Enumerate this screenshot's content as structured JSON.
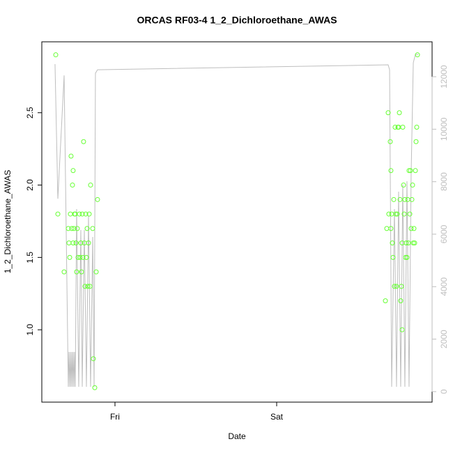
{
  "chart_data": {
    "type": "scatter",
    "title": "ORCAS RF03-4 1_2_Dichloroethane_AWAS",
    "xlabel": "Date",
    "ylabel": "1_2_Dichloroethane_AWAS",
    "xlim": [
      -10.86,
      47.07
    ],
    "xticks": [
      {
        "value": 0,
        "label": "Fri"
      },
      {
        "value": 24,
        "label": "Sat"
      }
    ],
    "ylim": [
      0.5,
      2.99
    ],
    "yticks": [
      {
        "value": 1.0,
        "label": "1.0"
      },
      {
        "value": 1.5,
        "label": "1.5"
      },
      {
        "value": 2.0,
        "label": "2.0"
      },
      {
        "value": 2.5,
        "label": "2.5"
      }
    ],
    "y2lim": [
      -400,
      13330
    ],
    "y2ticks": [
      0,
      2000,
      4000,
      6000,
      8000,
      10000,
      12000
    ],
    "series": [
      {
        "type": "scatter",
        "color": "#66ff33",
        "x": [
          -8.79,
          -8.48,
          -7.55,
          -6.93,
          -6.83,
          -6.72,
          -6.62,
          -6.52,
          -6.41,
          -6.31,
          -6.21,
          -6.21,
          -6.1,
          -6.0,
          -5.9,
          -5.79,
          -5.69,
          -5.59,
          -5.48,
          -5.28,
          -5.17,
          -5.07,
          -4.97,
          -4.86,
          -4.76,
          -4.66,
          -4.55,
          -4.45,
          -4.34,
          -4.24,
          -4.14,
          -4.03,
          -3.93,
          -3.83,
          -3.72,
          -3.62,
          -3.31,
          -3.21,
          -3.0,
          -2.79,
          -2.59,
          40.14,
          40.34,
          40.55,
          40.65,
          40.86,
          40.96,
          40.96,
          41.07,
          41.17,
          41.27,
          41.38,
          41.48,
          41.58,
          41.69,
          41.79,
          41.9,
          42.0,
          42.1,
          42.21,
          42.31,
          42.41,
          42.52,
          42.62,
          42.62,
          42.72,
          42.83,
          42.93,
          43.03,
          43.14,
          43.24,
          43.34,
          43.45,
          43.55,
          43.65,
          43.76,
          43.86,
          43.96,
          44.07,
          44.17,
          44.28,
          44.38,
          44.48,
          44.59,
          44.69,
          44.79,
          44.9
        ],
        "values": [
          2.9,
          1.8,
          1.4,
          1.7,
          1.6,
          1.5,
          1.8,
          2.2,
          1.7,
          2.0,
          2.1,
          1.6,
          1.7,
          1.8,
          1.8,
          1.6,
          1.4,
          1.7,
          1.5,
          1.8,
          1.5,
          1.6,
          1.4,
          1.8,
          1.5,
          2.3,
          1.6,
          1.3,
          1.8,
          1.5,
          1.7,
          1.3,
          1.6,
          1.8,
          1.3,
          2.0,
          1.7,
          0.8,
          0.6,
          1.4,
          1.9,
          1.2,
          1.7,
          2.5,
          1.8,
          2.3,
          2.1,
          1.7,
          1.8,
          1.6,
          1.5,
          1.9,
          1.3,
          2.4,
          1.8,
          1.3,
          1.8,
          2.4,
          2.4,
          2.5,
          1.9,
          1.2,
          1.3,
          1.6,
          1.0,
          2.4,
          2.0,
          1.8,
          1.9,
          1.5,
          1.6,
          1.5,
          1.9,
          1.6,
          2.1,
          1.8,
          2.1,
          1.7,
          1.9,
          2.0,
          1.6,
          1.7,
          1.6,
          2.1,
          2.3,
          2.4,
          2.9
        ]
      },
      {
        "type": "line",
        "color": "#bebebe",
        "axis": "y2",
        "x": [
          -8.9,
          -8.48,
          -7.55,
          -6.93,
          -6.83,
          -6.72,
          -6.62,
          -6.52,
          -6.41,
          -6.31,
          -6.21,
          -6.1,
          -6.0,
          -5.9,
          -5.69,
          -5.38,
          -5.07,
          -4.86,
          -4.55,
          -4.24,
          -3.93,
          -3.62,
          -3.31,
          -3.1,
          -2.9,
          -2.59,
          40.55,
          40.76,
          41.07,
          41.48,
          41.79,
          42.1,
          42.41,
          42.72,
          43.03,
          43.34,
          43.65,
          43.96,
          44.28,
          44.59,
          45.0
        ],
        "values": [
          12480,
          7350,
          12050,
          186,
          1513,
          186,
          1513,
          186,
          1513,
          186,
          1513,
          186,
          1513,
          186,
          6956,
          186,
          6160,
          186,
          6160,
          186,
          6690,
          186,
          5894,
          186,
          12133,
          12266,
          12452,
          12266,
          186,
          6956,
          186,
          7620,
          186,
          7885,
          186,
          8018,
          186,
          8284,
          12532,
          12850,
          12850
        ]
      }
    ]
  }
}
